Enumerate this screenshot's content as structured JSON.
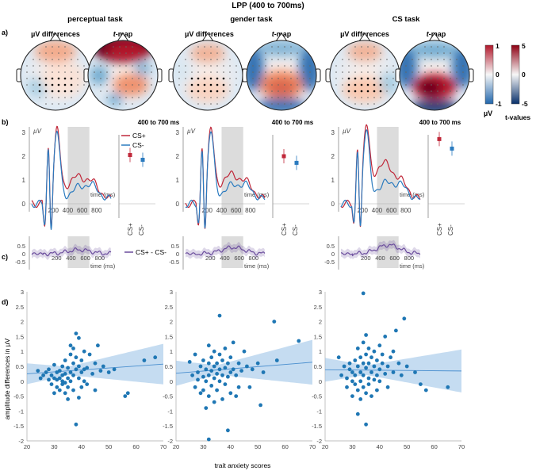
{
  "title": "LPP (400 to 700ms)",
  "panel_labels": [
    "a)",
    "b)",
    "c)",
    "d)"
  ],
  "tasks": [
    {
      "name": "perceptual task",
      "mean_cs_plus": 2.05,
      "mean_cs_minus": 1.85,
      "reg_intercept": 0.12,
      "reg_slope": 0.0065,
      "ci_at_20": 0.35,
      "ci_at_35": 0.14,
      "ci_at_70": 0.68
    },
    {
      "name": "gender task",
      "mean_cs_plus": 2.0,
      "mean_cs_minus": 1.72,
      "reg_intercept": 0.12,
      "reg_slope": 0.0074,
      "ci_at_20": 0.42,
      "ci_at_35": 0.16,
      "ci_at_70": 0.75
    },
    {
      "name": "CS task",
      "mean_cs_plus": 2.72,
      "mean_cs_minus": 2.32,
      "reg_intercept": 0.4,
      "reg_slope": -0.0008,
      "ci_at_20": 0.4,
      "ci_at_35": 0.16,
      "ci_at_70": 0.72
    }
  ],
  "map_labels": {
    "uv": "µV differences",
    "tmap_prefix": "t",
    "tmap_suffix": "-map"
  },
  "window_label": "400 to 700 ms",
  "colorbars": {
    "uv": {
      "max": "1",
      "mid": "0",
      "min": "-1",
      "unit": "µV",
      "colors": [
        "#b2182b",
        "#f7f7f7",
        "#2166ac"
      ]
    },
    "t": {
      "max": "5",
      "mid": "0",
      "min": "-5",
      "unit": "t-values",
      "colors": [
        "#8e0013",
        "#f7f7f7",
        "#08306b"
      ]
    }
  },
  "erp": {
    "y_unit": "µV",
    "yticks": [
      "3",
      "2",
      "1",
      "0"
    ],
    "xticks": [
      "200",
      "400",
      "600",
      "800"
    ],
    "xlabel": "time (ms)",
    "legend": [
      "CS+",
      "CS-"
    ],
    "point_xticks": [
      "CS+",
      "CS-"
    ],
    "colors": {
      "cs_plus": "#c0283a",
      "cs_minus": "#2b7bbf"
    }
  },
  "diff": {
    "yticks": [
      "0.5",
      "0",
      "-0.5"
    ],
    "xticks": [
      "200",
      "400",
      "600",
      "800"
    ],
    "xlabel": "time (ms)",
    "legend": "CS+ - CS-",
    "color": "#6a4c9c"
  },
  "chart_data": {
    "type": "scatter",
    "xlabel": "trait anxiety scores",
    "ylabel": "amplitude differences in µV",
    "xlim": [
      20,
      70
    ],
    "ylim": [
      -2,
      3
    ],
    "xticks": [
      "20",
      "30",
      "40",
      "50",
      "60",
      "70"
    ],
    "yticks": [
      "3",
      "2.5",
      "2",
      "1.5",
      "1",
      "0.5",
      "0",
      "-0.5",
      "-1",
      "-1.5",
      "-2"
    ],
    "point_color": "#1f77b4",
    "series": [
      {
        "name": "perceptual task",
        "points": [
          [
            24,
            0.35
          ],
          [
            25,
            0.1
          ],
          [
            26,
            0.2
          ],
          [
            27,
            0.3
          ],
          [
            28,
            0.4
          ],
          [
            28,
            0.05
          ],
          [
            29,
            0.2
          ],
          [
            29,
            -0.1
          ],
          [
            30,
            0.1
          ],
          [
            30,
            0.55
          ],
          [
            30,
            -0.4
          ],
          [
            31,
            0.3
          ],
          [
            31,
            0.05
          ],
          [
            31,
            -0.2
          ],
          [
            32,
            0.35
          ],
          [
            32,
            0.1
          ],
          [
            32,
            -0.3
          ],
          [
            33,
            0.5
          ],
          [
            33,
            0.2
          ],
          [
            33,
            0.0
          ],
          [
            33,
            -0.1
          ],
          [
            34,
            0.7
          ],
          [
            34,
            0.25
          ],
          [
            34,
            -0.05
          ],
          [
            34,
            -0.4
          ],
          [
            35,
            0.45
          ],
          [
            35,
            0.1
          ],
          [
            35,
            -0.2
          ],
          [
            35,
            -0.6
          ],
          [
            36,
            0.9
          ],
          [
            36,
            1.2
          ],
          [
            36,
            0.3
          ],
          [
            36,
            0.0
          ],
          [
            37,
            1.1
          ],
          [
            37,
            0.6
          ],
          [
            37,
            0.2
          ],
          [
            37,
            -0.3
          ],
          [
            38,
            1.6
          ],
          [
            38,
            0.8
          ],
          [
            38,
            0.4
          ],
          [
            38,
            -1.45
          ],
          [
            39,
            1.45
          ],
          [
            39,
            0.5
          ],
          [
            39,
            0.1
          ],
          [
            39,
            -0.55
          ],
          [
            40,
            0.7
          ],
          [
            40,
            0.3
          ],
          [
            40,
            -0.2
          ],
          [
            41,
            1.0
          ],
          [
            41,
            0.4
          ],
          [
            41,
            0.0
          ],
          [
            42,
            0.45
          ],
          [
            42,
            -0.1
          ],
          [
            43,
            0.9
          ],
          [
            44,
            0.25
          ],
          [
            45,
            0.6
          ],
          [
            45,
            -0.3
          ],
          [
            46,
            1.2
          ],
          [
            47,
            0.35
          ],
          [
            48,
            0.5
          ],
          [
            50,
            0.3
          ],
          [
            52,
            0.4
          ],
          [
            56,
            -0.5
          ],
          [
            57,
            -0.4
          ],
          [
            63,
            0.7
          ],
          [
            67,
            0.8
          ]
        ]
      },
      {
        "name": "gender task",
        "points": [
          [
            25,
            0.65
          ],
          [
            26,
            0.2
          ],
          [
            27,
            0.9
          ],
          [
            27,
            -0.2
          ],
          [
            28,
            0.3
          ],
          [
            28,
            0.05
          ],
          [
            29,
            0.5
          ],
          [
            29,
            -0.4
          ],
          [
            30,
            0.7
          ],
          [
            30,
            0.15
          ],
          [
            30,
            -0.3
          ],
          [
            31,
            0.4
          ],
          [
            31,
            0.0
          ],
          [
            31,
            -0.9
          ],
          [
            32,
            1.2
          ],
          [
            32,
            0.6
          ],
          [
            32,
            0.2
          ],
          [
            32,
            -0.5
          ],
          [
            32,
            -1.95
          ],
          [
            33,
            0.8
          ],
          [
            33,
            0.35
          ],
          [
            33,
            -0.15
          ],
          [
            34,
            1.0
          ],
          [
            34,
            0.5
          ],
          [
            34,
            0.1
          ],
          [
            34,
            -0.7
          ],
          [
            35,
            0.6
          ],
          [
            35,
            0.25
          ],
          [
            35,
            -0.3
          ],
          [
            36,
            2.2
          ],
          [
            36,
            0.9
          ],
          [
            36,
            0.4
          ],
          [
            36,
            0.0
          ],
          [
            37,
            0.7
          ],
          [
            37,
            0.2
          ],
          [
            37,
            -0.6
          ],
          [
            38,
            1.1
          ],
          [
            38,
            0.45
          ],
          [
            38,
            -0.1
          ],
          [
            39,
            0.6
          ],
          [
            39,
            0.15
          ],
          [
            39,
            -1.65
          ],
          [
            40,
            0.8
          ],
          [
            40,
            0.3
          ],
          [
            40,
            -0.4
          ],
          [
            41,
            1.3
          ],
          [
            41,
            0.4
          ],
          [
            42,
            0.2
          ],
          [
            42,
            -0.5
          ],
          [
            43,
            0.6
          ],
          [
            43,
            -0.2
          ],
          [
            44,
            0.35
          ],
          [
            45,
            1.0
          ],
          [
            46,
            0.5
          ],
          [
            47,
            -0.2
          ],
          [
            48,
            0.4
          ],
          [
            50,
            0.6
          ],
          [
            51,
            -0.8
          ],
          [
            52,
            0.3
          ],
          [
            56,
            2.0
          ],
          [
            57,
            0.7
          ],
          [
            65,
            1.35
          ]
        ]
      },
      {
        "name": "CS task",
        "points": [
          [
            25,
            0.8
          ],
          [
            26,
            0.2
          ],
          [
            27,
            0.5
          ],
          [
            28,
            0.1
          ],
          [
            28,
            -0.2
          ],
          [
            29,
            0.4
          ],
          [
            29,
            0.6
          ],
          [
            30,
            0.0
          ],
          [
            30,
            0.3
          ],
          [
            30,
            -0.5
          ],
          [
            31,
            0.7
          ],
          [
            31,
            0.2
          ],
          [
            31,
            -0.1
          ],
          [
            32,
            1.1
          ],
          [
            32,
            0.5
          ],
          [
            32,
            -0.3
          ],
          [
            32,
            -1.1
          ],
          [
            33,
            0.8
          ],
          [
            33,
            0.3
          ],
          [
            33,
            0.0
          ],
          [
            33,
            -0.6
          ],
          [
            34,
            1.3
          ],
          [
            34,
            0.6
          ],
          [
            34,
            2.95
          ],
          [
            34,
            0.2
          ],
          [
            34,
            -0.2
          ],
          [
            35,
            0.9
          ],
          [
            35,
            1.55
          ],
          [
            35,
            0.45
          ],
          [
            35,
            -0.4
          ],
          [
            35,
            -1.45
          ],
          [
            36,
            1.1
          ],
          [
            36,
            0.6
          ],
          [
            36,
            0.1
          ],
          [
            36,
            -0.1
          ],
          [
            37,
            0.8
          ],
          [
            37,
            0.3
          ],
          [
            37,
            -0.5
          ],
          [
            38,
            1.0
          ],
          [
            38,
            0.5
          ],
          [
            38,
            0.05
          ],
          [
            39,
            0.7
          ],
          [
            39,
            0.2
          ],
          [
            39,
            -0.3
          ],
          [
            40,
            1.2
          ],
          [
            40,
            0.4
          ],
          [
            40,
            0.0
          ],
          [
            41,
            0.6
          ],
          [
            41,
            0.9
          ],
          [
            42,
            1.5
          ],
          [
            42,
            0.25
          ],
          [
            43,
            0.5
          ],
          [
            43,
            -0.2
          ],
          [
            44,
            0.8
          ],
          [
            45,
            1.0
          ],
          [
            45,
            0.3
          ],
          [
            46,
            1.7
          ],
          [
            47,
            0.6
          ],
          [
            48,
            0.2
          ],
          [
            49,
            2.1
          ],
          [
            50,
            0.5
          ],
          [
            53,
            0.3
          ],
          [
            55,
            -0.1
          ],
          [
            57,
            -0.3
          ],
          [
            65,
            -0.2
          ]
        ]
      }
    ]
  }
}
